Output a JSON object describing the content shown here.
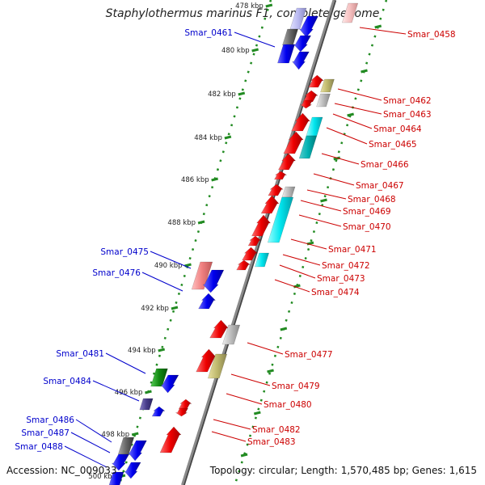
{
  "title": "Staphylothermus marinus F1, complete genome",
  "footer": {
    "accession_label": "Accession:",
    "accession": "NC_009033",
    "topology_label": "Topology:",
    "topology": "circular",
    "length_label": "Length:",
    "length": "1,570,485 bp",
    "genes_label": "Genes:",
    "genes": "1,615"
  },
  "colors": {
    "forward_gene": "#ee0000",
    "reverse_gene": "#0000ee",
    "forward_label": "#cc0000",
    "reverse_label": "#0000cc",
    "backbone": "#8a8a8a",
    "tick_dots": "#228b22",
    "cyan_feature": "#00e5ee",
    "olive_feature": "#bdb76b",
    "pink_feature": "#f08080",
    "gray_feature": "#999999",
    "green_feature": "#118811",
    "purple_feature": "#483d8b"
  },
  "scale_ticks": [
    "478 kbp",
    "480 kbp",
    "482 kbp",
    "484 kbp",
    "486 kbp",
    "488 kbp",
    "490 kbp",
    "492 kbp",
    "494 kbp",
    "496 kbp",
    "498 kbp",
    "500 kbp"
  ],
  "forward_labels": [
    "Smar_0458",
    "Smar_0462",
    "Smar_0463",
    "Smar_0464",
    "Smar_0465",
    "Smar_0466",
    "Smar_0467",
    "Smar_0468",
    "Smar_0469",
    "Smar_0470",
    "Smar_0471",
    "Smar_0472",
    "Smar_0473",
    "Smar_0474",
    "Smar_0477",
    "Smar_0479",
    "Smar_0480",
    "Smar_0482",
    "Smar_0483"
  ],
  "reverse_labels": [
    "Smar_0461",
    "Smar_0475",
    "Smar_0476",
    "Smar_0481",
    "Smar_0484",
    "Smar_0486",
    "Smar_0487",
    "Smar_0488"
  ]
}
